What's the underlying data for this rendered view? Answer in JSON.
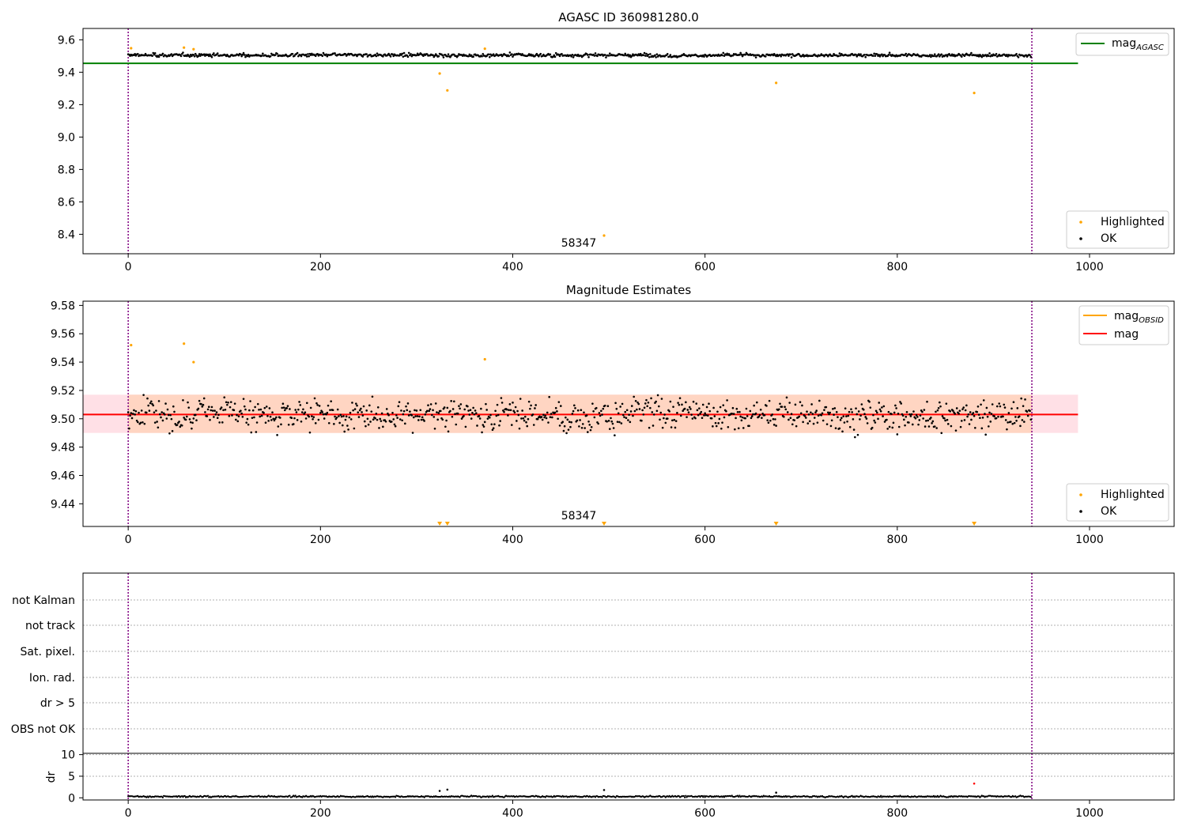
{
  "chart_data": [
    {
      "type": "scatter",
      "title": "AGASC ID 360981280.0",
      "xlim": [
        -47,
        1088
      ],
      "ylim": [
        8.28,
        9.67
      ],
      "xticks": [
        0,
        200,
        400,
        600,
        800,
        1000
      ],
      "yticks": [
        8.4,
        8.6,
        8.8,
        9.0,
        9.2,
        9.4,
        9.6
      ],
      "xtick_labels": [
        "0",
        "200",
        "400",
        "600",
        "800",
        "1000"
      ],
      "ytick_labels": [
        "8.4",
        "8.6",
        "8.8",
        "9.0",
        "9.2",
        "9.4",
        "9.6"
      ],
      "obsid_boundaries": [
        0,
        940
      ],
      "obsid_label": {
        "text": "58347",
        "x": 470
      },
      "horizontal_line": {
        "name": "mag_AGASC",
        "y": 9.455,
        "x_range": [
          -47,
          988
        ],
        "color": "#008000"
      },
      "ok_series": {
        "name": "OK",
        "color": "#000000",
        "n_points": 940,
        "baseline": 9.505,
        "spread": 0.012
      },
      "highlighted_series": {
        "name": "Highlighted",
        "color": "#ffa500",
        "points": [
          [
            3,
            9.548
          ],
          [
            58,
            9.552
          ],
          [
            68,
            9.542
          ],
          [
            371,
            9.545
          ],
          [
            324,
            9.392
          ],
          [
            332,
            9.288
          ],
          [
            495,
            8.392
          ],
          [
            674,
            9.334
          ],
          [
            880,
            9.272
          ]
        ]
      },
      "legends": [
        {
          "position": "top-right",
          "entries": [
            {
              "label": "mag",
              "subscript": "AGASC",
              "marker": "line",
              "color": "#008000"
            }
          ]
        },
        {
          "position": "bottom-right",
          "entries": [
            {
              "label": "Highlighted",
              "marker": "dot",
              "color": "#ffa500"
            },
            {
              "label": "OK",
              "marker": "dot",
              "color": "#000000"
            }
          ]
        }
      ]
    },
    {
      "type": "scatter",
      "title": "Magnitude Estimates",
      "xlim": [
        -47,
        1088
      ],
      "ylim": [
        9.424,
        9.583
      ],
      "xticks": [
        0,
        200,
        400,
        600,
        800,
        1000
      ],
      "yticks": [
        9.44,
        9.46,
        9.48,
        9.5,
        9.52,
        9.54,
        9.56,
        9.58
      ],
      "xtick_labels": [
        "0",
        "200",
        "400",
        "600",
        "800",
        "1000"
      ],
      "ytick_labels": [
        "9.44",
        "9.46",
        "9.48",
        "9.50",
        "9.52",
        "9.54",
        "9.56",
        "9.58"
      ],
      "obsid_boundaries": [
        0,
        940
      ],
      "obsid_label": {
        "text": "58347",
        "x": 470
      },
      "mean_line": {
        "name": "mag",
        "y": 9.503,
        "x_range": [
          0,
          940
        ],
        "color": "#ff0000"
      },
      "outer_band": {
        "y_range": [
          9.49,
          9.517
        ],
        "x_range": [
          -47,
          988
        ],
        "color": "#ffe0e6"
      },
      "inner_band": {
        "y_range": [
          9.49,
          9.517
        ],
        "x_range": [
          0,
          940
        ],
        "color": "#ffd5c2"
      },
      "ok_series": {
        "name": "OK",
        "color": "#000000",
        "n_points": 940,
        "baseline": 9.503,
        "spread": 0.012
      },
      "highlighted_series": {
        "name": "Highlighted",
        "color": "#ffa500",
        "points": [
          [
            3,
            9.552
          ],
          [
            58,
            9.553
          ],
          [
            68,
            9.54
          ],
          [
            371,
            9.542
          ]
        ]
      },
      "off_scale_markers": {
        "color": "#ffa500",
        "x": [
          324,
          332,
          495,
          674,
          880
        ]
      },
      "legends": [
        {
          "position": "top-right",
          "entries": [
            {
              "label": "mag",
              "subscript": "OBSID",
              "marker": "line",
              "color": "#ffa500"
            },
            {
              "label": "mag",
              "marker": "line",
              "color": "#ff0000"
            }
          ]
        },
        {
          "position": "bottom-right",
          "entries": [
            {
              "label": "Highlighted",
              "marker": "dot",
              "color": "#ffa500"
            },
            {
              "label": "OK",
              "marker": "dot",
              "color": "#000000"
            }
          ]
        }
      ]
    },
    {
      "type": "scatter",
      "title": "",
      "xlim": [
        -47,
        1088
      ],
      "category_labels": [
        "not Kalman",
        "not track",
        "Sat. pixel.",
        "Ion. rad.",
        "dr > 5",
        "OBS not OK"
      ],
      "obsid_boundaries": [
        0,
        940
      ],
      "flag_points": []
    },
    {
      "type": "scatter",
      "title": "",
      "ylabel": "dr",
      "xlim": [
        -47,
        1088
      ],
      "ylim": [
        -0.5,
        10.3
      ],
      "xticks": [
        0,
        200,
        400,
        600,
        800,
        1000
      ],
      "yticks": [
        0,
        5,
        10
      ],
      "xtick_labels": [
        "0",
        "200",
        "400",
        "600",
        "800",
        "1000"
      ],
      "ytick_labels": [
        "0",
        "5",
        "10"
      ],
      "obsid_boundaries": [
        0,
        940
      ],
      "ok_series": {
        "name": "OK",
        "color": "#000000",
        "n_points": 940,
        "baseline": 0.3,
        "spread": 0.12
      },
      "outliers": [
        [
          324,
          1.6,
          "#000000"
        ],
        [
          332,
          1.9,
          "#000000"
        ],
        [
          495,
          1.8,
          "#000000"
        ],
        [
          674,
          1.2,
          "#000000"
        ],
        [
          880,
          3.3,
          "#ff0000"
        ]
      ]
    }
  ]
}
